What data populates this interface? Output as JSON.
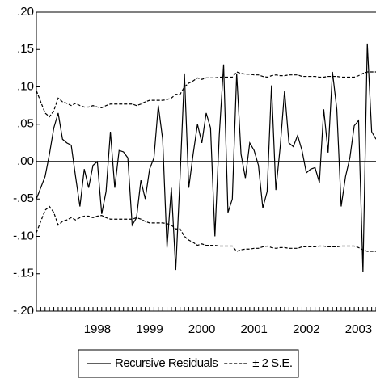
{
  "chart_data": {
    "type": "line",
    "categories": [
      null,
      null,
      null,
      null,
      null,
      null,
      null,
      null,
      null,
      null,
      null,
      null,
      null,
      null,
      "1998",
      null,
      null,
      null,
      null,
      null,
      null,
      null,
      null,
      null,
      null,
      null,
      "1999",
      null,
      null,
      null,
      null,
      null,
      null,
      null,
      null,
      null,
      null,
      null,
      "2000",
      null,
      null,
      null,
      null,
      null,
      null,
      null,
      null,
      null,
      null,
      null,
      "2001",
      null,
      null,
      null,
      null,
      null,
      null,
      null,
      null,
      null,
      null,
      null,
      "2002",
      null,
      null,
      null,
      null,
      null,
      null,
      null,
      null,
      null,
      null,
      null,
      "2003",
      null,
      null,
      null,
      null
    ],
    "series": [
      {
        "name": "Recursive Residuals",
        "color": "#000000",
        "dash": "none",
        "values": [
          -0.05,
          -0.035,
          -0.02,
          0.01,
          0.045,
          0.065,
          0.03,
          0.025,
          0.022,
          -0.02,
          -0.06,
          -0.01,
          -0.035,
          -0.005,
          0.0,
          -0.07,
          -0.04,
          0.04,
          -0.035,
          0.015,
          0.013,
          0.005,
          -0.085,
          -0.075,
          -0.025,
          -0.05,
          -0.01,
          0.005,
          0.075,
          0.03,
          -0.115,
          -0.035,
          -0.145,
          -0.02,
          0.118,
          -0.035,
          0.01,
          0.05,
          0.025,
          0.065,
          0.045,
          -0.1,
          0.035,
          0.13,
          -0.068,
          -0.05,
          0.118,
          0.01,
          -0.022,
          0.025,
          0.015,
          -0.005,
          -0.062,
          -0.04,
          0.102,
          -0.038,
          0.02,
          0.095,
          0.025,
          0.02,
          0.035,
          0.015,
          -0.015,
          -0.01,
          -0.008,
          -0.028,
          0.07,
          0.012,
          0.12,
          0.07,
          -0.06,
          -0.02,
          0.005,
          0.048,
          0.055,
          -0.148,
          0.158,
          0.04,
          0.03
        ]
      },
      {
        "name": "± 2 S.E.",
        "color": "#000000",
        "dash": "4 2",
        "mirrored": true,
        "values": [
          0.095,
          0.08,
          0.065,
          0.06,
          0.068,
          0.085,
          0.08,
          0.078,
          0.075,
          0.078,
          0.075,
          0.073,
          0.073,
          0.075,
          0.073,
          0.072,
          0.075,
          0.077,
          0.077,
          0.077,
          0.077,
          0.077,
          0.077,
          0.075,
          0.077,
          0.08,
          0.082,
          0.082,
          0.082,
          0.082,
          0.083,
          0.085,
          0.09,
          0.09,
          0.1,
          0.105,
          0.108,
          0.112,
          0.11,
          0.112,
          0.112,
          0.112,
          0.113,
          0.113,
          0.113,
          0.113,
          0.12,
          0.118,
          0.117,
          0.117,
          0.116,
          0.116,
          0.114,
          0.113,
          0.115,
          0.116,
          0.115,
          0.115,
          0.116,
          0.116,
          0.116,
          0.114,
          0.114,
          0.114,
          0.114,
          0.113,
          0.113,
          0.114,
          0.114,
          0.114,
          0.113,
          0.113,
          0.113,
          0.113,
          0.115,
          0.118,
          0.12,
          0.12,
          0.12
        ]
      }
    ],
    "ylim": [
      -0.2,
      0.2
    ],
    "yticks": [
      {
        "value": -0.2,
        "label": "-.20"
      },
      {
        "value": -0.15,
        "label": "-.15"
      },
      {
        "value": -0.1,
        "label": "-.10"
      },
      {
        "value": -0.05,
        "label": "-.05"
      },
      {
        "value": 0,
        "label": ".00"
      },
      {
        "value": 0.05,
        "label": ".05"
      },
      {
        "value": 0.1,
        "label": ".10"
      },
      {
        "value": 0.15,
        "label": ".15"
      },
      {
        "value": 0.2,
        "label": ".20"
      }
    ],
    "zero_line": true,
    "legend": "bottom"
  }
}
